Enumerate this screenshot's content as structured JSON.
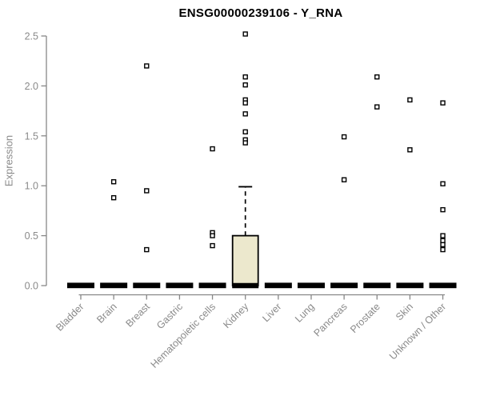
{
  "chart_data": {
    "type": "boxplot",
    "title": "ENSG00000239106 - Y_RNA",
    "ylabel": "Expression",
    "xlabel": "",
    "ylim": [
      0,
      2.5
    ],
    "yticks": [
      0,
      0.5,
      1,
      1.5,
      2,
      2.5
    ],
    "ytick_labels": [
      "0.0",
      "0.5",
      "1.0",
      "1.5",
      "2.0",
      "2.5"
    ],
    "grid": "off",
    "legend": "none",
    "categories": [
      "Bladder",
      "Brain",
      "Breast",
      "Gastric",
      "Hematopoietic cells",
      "Kidney",
      "Liver",
      "Lung",
      "Pancreas",
      "Prostate",
      "Skin",
      "Unknown / Other"
    ],
    "boxes": [
      {
        "category": "Bladder",
        "median": 0,
        "q1": 0,
        "q3": 0,
        "whisker_low": 0,
        "whisker_high": 0,
        "outliers": []
      },
      {
        "category": "Brain",
        "median": 0,
        "q1": 0,
        "q3": 0,
        "whisker_low": 0,
        "whisker_high": 0,
        "outliers": [
          1.04,
          0.88
        ]
      },
      {
        "category": "Breast",
        "median": 0,
        "q1": 0,
        "q3": 0,
        "whisker_low": 0,
        "whisker_high": 0,
        "outliers": [
          2.2,
          0.95,
          0.36
        ]
      },
      {
        "category": "Gastric",
        "median": 0,
        "q1": 0,
        "q3": 0,
        "whisker_low": 0,
        "whisker_high": 0,
        "outliers": []
      },
      {
        "category": "Hematopoietic cells",
        "median": 0,
        "q1": 0,
        "q3": 0,
        "whisker_low": 0,
        "whisker_high": 0,
        "outliers": [
          1.37,
          0.53,
          0.5,
          0.4
        ]
      },
      {
        "category": "Kidney",
        "median": 0,
        "q1": 0,
        "q3": 0.5,
        "whisker_low": 0,
        "whisker_high": 0.99,
        "outliers": [
          2.52,
          2.09,
          2.01,
          1.86,
          1.83,
          1.72,
          1.54,
          1.46,
          1.43
        ]
      },
      {
        "category": "Liver",
        "median": 0,
        "q1": 0,
        "q3": 0,
        "whisker_low": 0,
        "whisker_high": 0,
        "outliers": []
      },
      {
        "category": "Lung",
        "median": 0,
        "q1": 0,
        "q3": 0,
        "whisker_low": 0,
        "whisker_high": 0,
        "outliers": []
      },
      {
        "category": "Pancreas",
        "median": 0,
        "q1": 0,
        "q3": 0,
        "whisker_low": 0,
        "whisker_high": 0,
        "outliers": [
          1.49,
          1.06
        ]
      },
      {
        "category": "Prostate",
        "median": 0,
        "q1": 0,
        "q3": 0,
        "whisker_low": 0,
        "whisker_high": 0,
        "outliers": [
          2.09,
          1.79
        ]
      },
      {
        "category": "Skin",
        "median": 0,
        "q1": 0,
        "q3": 0,
        "whisker_low": 0,
        "whisker_high": 0,
        "outliers": [
          1.86,
          1.36
        ]
      },
      {
        "category": "Unknown / Other",
        "median": 0,
        "q1": 0,
        "q3": 0,
        "whisker_low": 0,
        "whisker_high": 0,
        "outliers": [
          1.83,
          1.02,
          0.76,
          0.5,
          0.45,
          0.41,
          0.36
        ]
      }
    ],
    "colors": {
      "box_fill": "#ece8cd",
      "box_stroke": "#000000",
      "median": "#000000",
      "outlier_stroke": "#000000",
      "outlier_fill": "#ffffff",
      "axis": "#878787",
      "tick_text": "#8a8a8a",
      "title_text": "#000000",
      "background": "#ffffff"
    }
  }
}
